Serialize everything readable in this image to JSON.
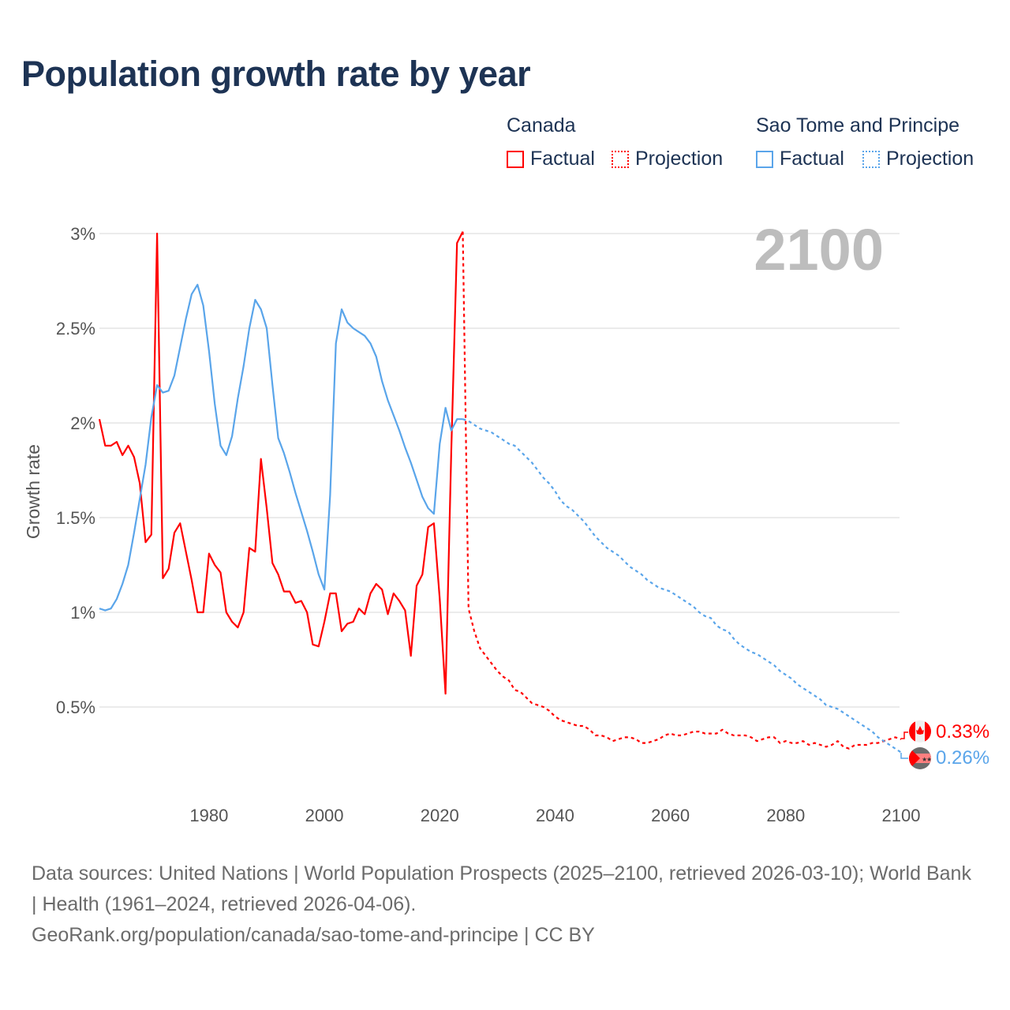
{
  "title": "Population growth rate by year",
  "legend": {
    "groups": [
      {
        "name": "Canada",
        "color": "#ff0000",
        "items": [
          "Factual",
          "Projection"
        ]
      },
      {
        "name": "Sao Tome and Principe",
        "color": "#5aa5ea",
        "items": [
          "Factual",
          "Projection"
        ]
      }
    ]
  },
  "footer": {
    "sources": "Data sources: United Nations | World Population Prospects (2025–2100, retrieved 2026-03-10); World Bank | Health (1961–2024, retrieved 2026-04-06).",
    "credit": "GeoRank.org/population/canada/sao-tome-and-principe | CC BY"
  },
  "chart_data": {
    "type": "line",
    "title": "Population growth rate by year",
    "ylabel": "Growth rate",
    "xlabel": "",
    "year_watermark": "2100",
    "xlim": [
      1961,
      2100
    ],
    "ylim": [
      0,
      3.05
    ],
    "x_ticks": [
      1980,
      2000,
      2020,
      2040,
      2060,
      2080,
      2100
    ],
    "y_ticks": [
      0.5,
      1,
      1.5,
      2,
      2.5,
      3
    ],
    "y_tick_labels": [
      "0.5%",
      "1%",
      "1.5%",
      "2%",
      "2.5%",
      "3%"
    ],
    "grid": true,
    "legend_position": "top-right",
    "series": [
      {
        "name": "Canada Factual",
        "color": "#ff0000",
        "style": "solid",
        "start": 1961,
        "values": [
          2.02,
          1.88,
          1.88,
          1.9,
          1.83,
          1.88,
          1.82,
          1.68,
          1.37,
          1.41,
          3.0,
          1.18,
          1.23,
          1.42,
          1.47,
          1.32,
          1.17,
          1.0,
          1.0,
          1.31,
          1.25,
          1.21,
          1.0,
          0.95,
          0.92,
          1.0,
          1.34,
          1.32,
          1.81,
          1.55,
          1.26,
          1.2,
          1.11,
          1.11,
          1.05,
          1.06,
          1.0,
          0.83,
          0.82,
          0.95,
          1.1,
          1.1,
          0.9,
          0.94,
          0.95,
          1.02,
          0.99,
          1.1,
          1.15,
          1.12,
          0.99,
          1.1,
          1.06,
          1.01,
          0.77,
          1.14,
          1.2,
          1.45,
          1.47,
          1.07,
          0.57,
          1.85,
          2.95,
          3.01
        ]
      },
      {
        "name": "Canada Projection",
        "color": "#ff0000",
        "style": "dotted",
        "start": 2024,
        "values": [
          3.01,
          1.02,
          0.9,
          0.81,
          0.77,
          0.73,
          0.69,
          0.66,
          0.64,
          0.59,
          0.58,
          0.55,
          0.52,
          0.51,
          0.5,
          0.48,
          0.45,
          0.43,
          0.42,
          0.41,
          0.4,
          0.4,
          0.38,
          0.35,
          0.35,
          0.34,
          0.32,
          0.33,
          0.34,
          0.34,
          0.33,
          0.31,
          0.31,
          0.32,
          0.33,
          0.35,
          0.36,
          0.35,
          0.35,
          0.36,
          0.37,
          0.37,
          0.36,
          0.36,
          0.36,
          0.38,
          0.36,
          0.35,
          0.35,
          0.35,
          0.34,
          0.32,
          0.33,
          0.34,
          0.34,
          0.31,
          0.32,
          0.31,
          0.31,
          0.32,
          0.3,
          0.31,
          0.3,
          0.29,
          0.3,
          0.32,
          0.29,
          0.28,
          0.3,
          0.3,
          0.3,
          0.31,
          0.31,
          0.32,
          0.33,
          0.34,
          0.33
        ]
      },
      {
        "name": "Sao Tome and Principe Factual",
        "color": "#5aa5ea",
        "style": "solid",
        "start": 1961,
        "values": [
          1.02,
          1.01,
          1.02,
          1.07,
          1.15,
          1.25,
          1.42,
          1.6,
          1.78,
          2.03,
          2.2,
          2.16,
          2.17,
          2.25,
          2.4,
          2.55,
          2.68,
          2.73,
          2.62,
          2.38,
          2.1,
          1.88,
          1.83,
          1.93,
          2.13,
          2.3,
          2.5,
          2.65,
          2.6,
          2.5,
          2.2,
          1.92,
          1.84,
          1.74,
          1.63,
          1.53,
          1.43,
          1.32,
          1.2,
          1.12,
          1.62,
          2.42,
          2.6,
          2.53,
          2.5,
          2.48,
          2.46,
          2.42,
          2.35,
          2.22,
          2.12,
          2.04,
          1.96,
          1.87,
          1.79,
          1.7,
          1.61,
          1.55,
          1.52,
          1.89,
          2.08,
          1.96,
          2.02,
          2.02
        ]
      },
      {
        "name": "Sao Tome and Principe Projection",
        "color": "#5aa5ea",
        "style": "dotted",
        "start": 2024,
        "values": [
          2.02,
          2.01,
          1.99,
          1.97,
          1.96,
          1.95,
          1.93,
          1.91,
          1.89,
          1.88,
          1.85,
          1.82,
          1.79,
          1.75,
          1.71,
          1.68,
          1.64,
          1.59,
          1.56,
          1.54,
          1.51,
          1.48,
          1.44,
          1.4,
          1.37,
          1.34,
          1.32,
          1.3,
          1.27,
          1.24,
          1.22,
          1.2,
          1.17,
          1.15,
          1.13,
          1.12,
          1.11,
          1.09,
          1.07,
          1.05,
          1.03,
          1.0,
          0.98,
          0.97,
          0.93,
          0.91,
          0.9,
          0.86,
          0.83,
          0.81,
          0.79,
          0.78,
          0.76,
          0.74,
          0.72,
          0.69,
          0.67,
          0.65,
          0.62,
          0.6,
          0.58,
          0.56,
          0.54,
          0.51,
          0.5,
          0.49,
          0.47,
          0.45,
          0.43,
          0.41,
          0.39,
          0.37,
          0.34,
          0.32,
          0.3,
          0.28,
          0.26
        ]
      }
    ],
    "end_labels": [
      {
        "country": "Canada",
        "value": "0.33%",
        "color": "#ff0000"
      },
      {
        "country": "Sao Tome and Principe",
        "value": "0.26%",
        "color": "#5aa5ea"
      }
    ]
  }
}
